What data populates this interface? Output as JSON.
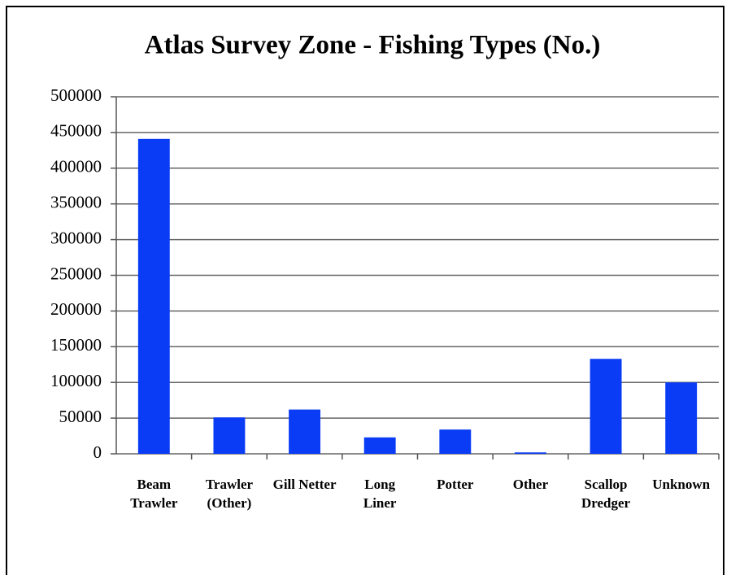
{
  "chart_data": {
    "type": "bar",
    "title": "Atlas Survey Zone - Fishing Types (No.)",
    "categories": [
      "Beam\nTrawler",
      "Trawler\n(Other)",
      "Gill Netter",
      "Long\nLiner",
      "Potter",
      "Other",
      "Scallop\nDredger",
      "Unknown"
    ],
    "values": [
      441000,
      51000,
      62000,
      23000,
      34000,
      2000,
      133000,
      100000
    ],
    "color": "#0a3cf5",
    "ylim": [
      0,
      500000
    ],
    "yticks": [
      0,
      50000,
      100000,
      150000,
      200000,
      250000,
      300000,
      350000,
      400000,
      450000,
      500000
    ],
    "grid": true
  }
}
